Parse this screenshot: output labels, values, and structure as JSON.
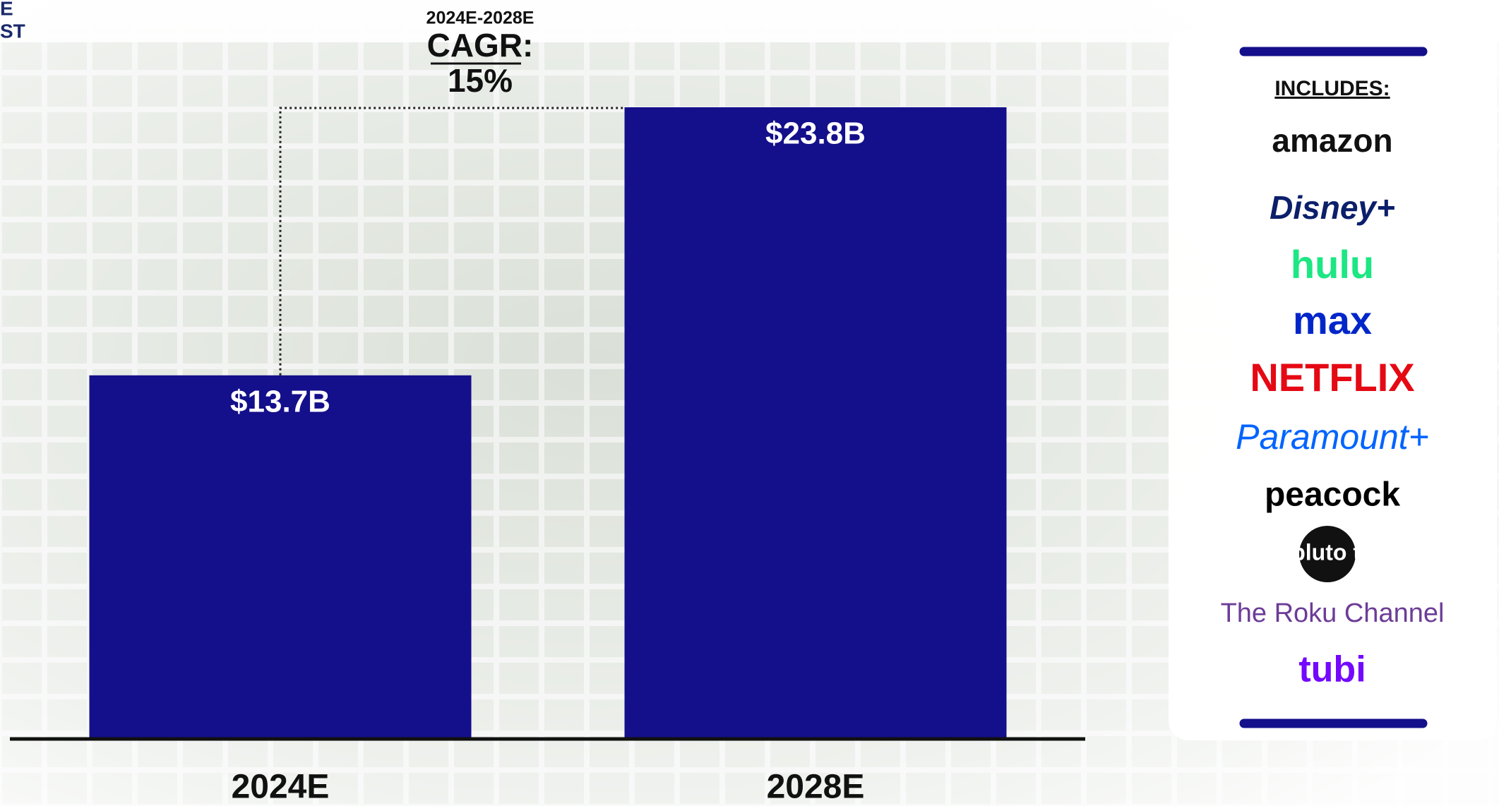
{
  "chart_data": {
    "type": "bar",
    "categories": [
      "2024E",
      "2028E"
    ],
    "values": [
      13.7,
      23.8
    ],
    "value_labels": [
      "$13.7B",
      "$23.8B"
    ],
    "color": "#140f8a",
    "edge_text": [
      "E",
      "ST"
    ],
    "annotation": {
      "period": "2024E-2028E",
      "label": "CAGR:",
      "value": "15%"
    },
    "includes_title": "INCLUDES:",
    "includes": [
      {
        "name": "amazon",
        "color": "#111111"
      },
      {
        "name": "Disney+",
        "color": "#0b1f6b"
      },
      {
        "name": "hulu",
        "color": "#1ce783"
      },
      {
        "name": "max",
        "color": "#0026c9"
      },
      {
        "name": "NETFLIX",
        "color": "#e50914"
      },
      {
        "name": "Paramount+",
        "color": "#0064ff"
      },
      {
        "name": "peacock",
        "color": "#000000"
      },
      {
        "name": "pluto tv",
        "color": "#000000"
      },
      {
        "name": "The Roku Channel",
        "color": "#6c3c97"
      },
      {
        "name": "tubi",
        "color": "#7408ff"
      }
    ]
  }
}
